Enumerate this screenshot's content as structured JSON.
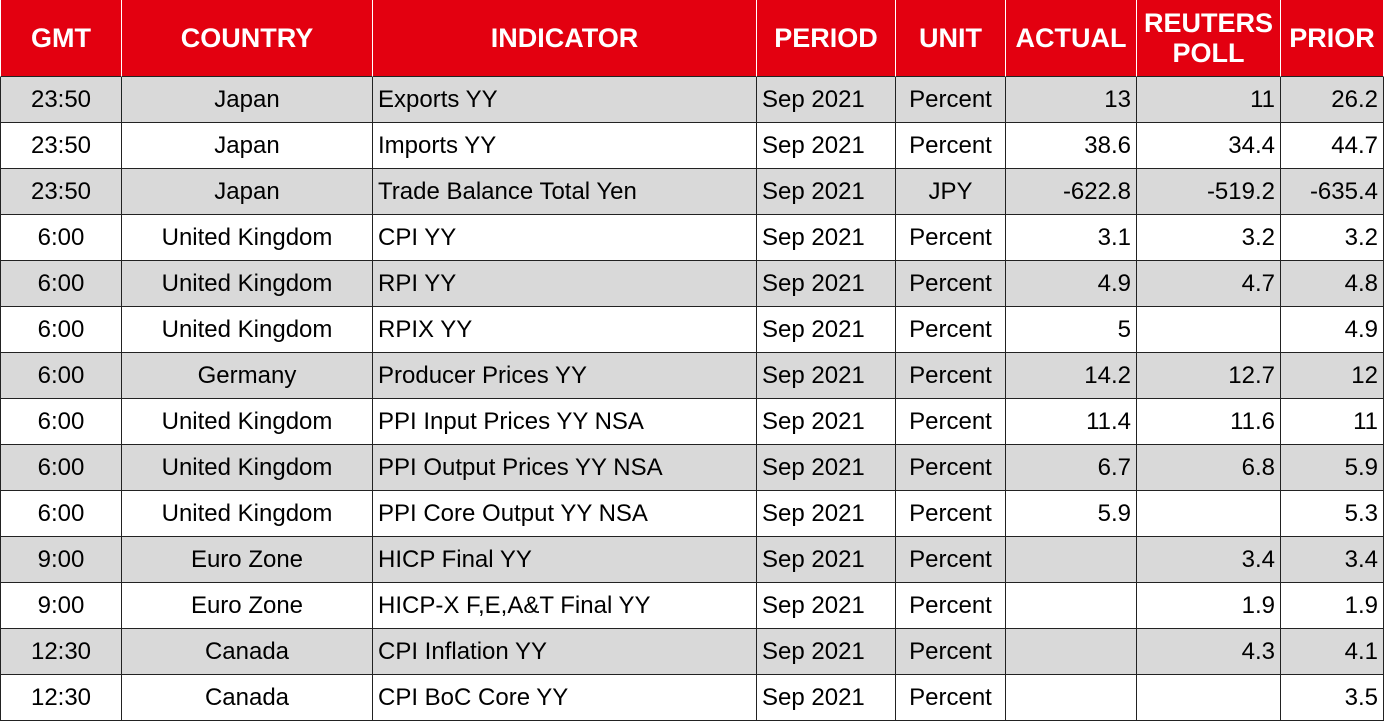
{
  "table": {
    "columns": [
      "GMT",
      "COUNTRY",
      "INDICATOR",
      "PERIOD",
      "UNIT",
      "ACTUAL",
      "REUTERS POLL",
      "PRIOR"
    ],
    "rows": [
      [
        "23:50",
        "Japan",
        "Exports YY",
        "Sep 2021",
        "Percent",
        13,
        11,
        26.2
      ],
      [
        "23:50",
        "Japan",
        "Imports YY",
        "Sep 2021",
        "Percent",
        38.6,
        34.4,
        44.7
      ],
      [
        "23:50",
        "Japan",
        "Trade Balance Total Yen",
        "Sep 2021",
        "JPY",
        -622.8,
        -519.2,
        -635.4
      ],
      [
        "6:00",
        "United Kingdom",
        "CPI YY",
        "Sep 2021",
        "Percent",
        3.1,
        3.2,
        3.2
      ],
      [
        "6:00",
        "United Kingdom",
        "RPI YY",
        "Sep 2021",
        "Percent",
        4.9,
        4.7,
        4.8
      ],
      [
        "6:00",
        "United Kingdom",
        "RPIX YY",
        "Sep 2021",
        "Percent",
        5,
        null,
        4.9
      ],
      [
        "6:00",
        "Germany",
        "Producer Prices YY",
        "Sep 2021",
        "Percent",
        14.2,
        12.7,
        12
      ],
      [
        "6:00",
        "United Kingdom",
        "PPI Input Prices YY NSA",
        "Sep 2021",
        "Percent",
        11.4,
        11.6,
        11
      ],
      [
        "6:00",
        "United Kingdom",
        "PPI Output Prices YY NSA",
        "Sep 2021",
        "Percent",
        6.7,
        6.8,
        5.9
      ],
      [
        "6:00",
        "United Kingdom",
        "PPI Core Output YY NSA",
        "Sep 2021",
        "Percent",
        5.9,
        null,
        5.3
      ],
      [
        "9:00",
        "Euro Zone",
        "HICP Final YY",
        "Sep 2021",
        "Percent",
        null,
        3.4,
        3.4
      ],
      [
        "9:00",
        "Euro Zone",
        "HICP-X F,E,A&T Final YY",
        "Sep 2021",
        "Percent",
        null,
        1.9,
        1.9
      ],
      [
        "12:30",
        "Canada",
        "CPI Inflation YY",
        "Sep 2021",
        "Percent",
        null,
        4.3,
        4.1
      ],
      [
        "12:30",
        "Canada",
        "CPI BoC Core YY",
        "Sep 2021",
        "Percent",
        null,
        null,
        3.5
      ]
    ]
  }
}
